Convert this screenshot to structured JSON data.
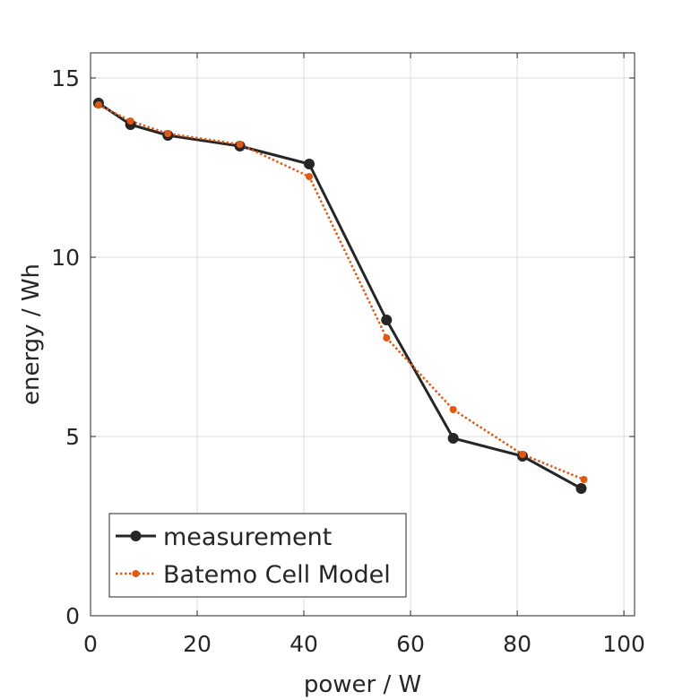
{
  "chart_data": {
    "type": "line",
    "xlabel": "power / W",
    "ylabel": "energy / Wh",
    "xlim": [
      0,
      102
    ],
    "ylim": [
      0,
      15.7
    ],
    "xticks": [
      0,
      20,
      40,
      60,
      80,
      100
    ],
    "yticks": [
      0,
      5,
      10,
      15
    ],
    "grid": true,
    "legend_position": "bottom-left",
    "series": [
      {
        "name": "measurement",
        "color": "#262626",
        "line_style": "solid",
        "marker": "circle-large",
        "x": [
          1.5,
          7.5,
          14.5,
          28,
          41,
          55.5,
          68,
          81,
          92
        ],
        "y": [
          14.3,
          13.7,
          13.4,
          13.1,
          12.6,
          8.25,
          4.95,
          4.45,
          3.55
        ]
      },
      {
        "name": "Batemo Cell Model",
        "color": "#e05a14",
        "line_style": "dotted",
        "marker": "circle-small",
        "x": [
          1.5,
          7.5,
          14.5,
          28,
          41,
          55.5,
          68,
          81,
          92.5
        ],
        "y": [
          14.25,
          13.8,
          13.45,
          13.15,
          12.25,
          7.75,
          5.75,
          4.5,
          3.8
        ]
      }
    ]
  }
}
